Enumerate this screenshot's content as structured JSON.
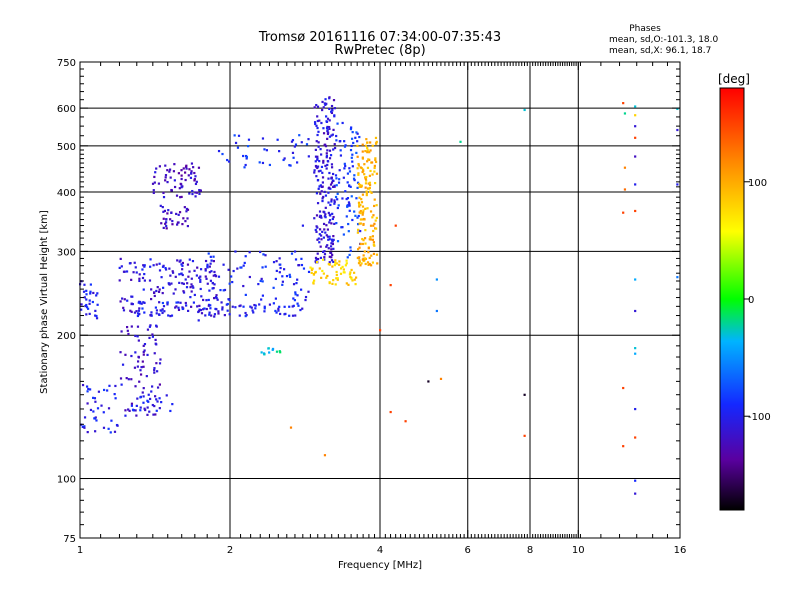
{
  "chart_data": {
    "type": "scatter",
    "title": "Tromsø 20161116 07:34:00-07:35:43",
    "subtitle": "RwPretec (8p)",
    "xlabel": "Frequency [MHz]",
    "ylabel": "Stationary phase Virtual Height [km]",
    "x_scale": "log",
    "y_scale": "log",
    "xlim": [
      1,
      16
    ],
    "ylim": [
      75,
      750
    ],
    "x_ticks": [
      1,
      2,
      4,
      6,
      8,
      10,
      16
    ],
    "x_tick_labels": [
      "1",
      "2",
      "4",
      "6",
      "8",
      "10",
      "16"
    ],
    "y_ticks": [
      75,
      100,
      200,
      300,
      400,
      500,
      600,
      750
    ],
    "y_tick_labels": [
      "75",
      "100",
      "200",
      "300",
      "400",
      "500",
      "600",
      "750"
    ],
    "grid": true,
    "legend": {
      "title": "Phases",
      "lines": [
        "mean, sd,O:-101.3, 18.0",
        "mean, sd,X:  96.1, 18.7"
      ],
      "position": "top-right"
    },
    "colorbar": {
      "label": "[deg]",
      "range": [
        -180,
        180
      ],
      "ticks": [
        100,
        0,
        -100
      ],
      "tick_labels": [
        "100",
        "0",
        "-100"
      ],
      "colormap": "rainbow"
    },
    "clusters": [
      {
        "x_range": [
          1.0,
          1.09
        ],
        "y_range": [
          215,
          260
        ],
        "phase": -101,
        "count": 30
      },
      {
        "x_range": [
          1.2,
          1.9
        ],
        "y_range": [
          220,
          290
        ],
        "phase": -110,
        "count": 180
      },
      {
        "x_range": [
          1.3,
          2.8
        ],
        "y_range": [
          219,
          235
        ],
        "phase": -98,
        "count": 90
      },
      {
        "x_range": [
          1.8,
          2.9
        ],
        "y_range": [
          235,
          300
        ],
        "phase": -95,
        "count": 80
      },
      {
        "x_range": [
          1.4,
          1.75
        ],
        "y_range": [
          390,
          460
        ],
        "phase": -120,
        "count": 70
      },
      {
        "x_range": [
          1.45,
          1.65
        ],
        "y_range": [
          335,
          375
        ],
        "phase": -120,
        "count": 35
      },
      {
        "x_range": [
          1.9,
          2.9
        ],
        "y_range": [
          450,
          530
        ],
        "phase": -90,
        "count": 40
      },
      {
        "x_range": [
          2.95,
          3.25
        ],
        "y_range": [
          280,
          640
        ],
        "phase": -110,
        "count": 220
      },
      {
        "x_range": [
          3.25,
          3.65
        ],
        "y_range": [
          290,
          560
        ],
        "phase": -85,
        "count": 90
      },
      {
        "x_range": [
          3.6,
          3.95
        ],
        "y_range": [
          280,
          520
        ],
        "phase": 96,
        "count": 160
      },
      {
        "x_range": [
          2.9,
          3.6
        ],
        "y_range": [
          255,
          290
        ],
        "phase": 80,
        "count": 60
      },
      {
        "x_range": [
          1.0,
          1.2
        ],
        "y_range": [
          125,
          160
        ],
        "phase": -100,
        "count": 40
      },
      {
        "x_range": [
          1.2,
          1.45
        ],
        "y_range": [
          135,
          210
        ],
        "phase": -115,
        "count": 80
      },
      {
        "x_range": [
          1.25,
          1.55
        ],
        "y_range": [
          138,
          150
        ],
        "phase": -100,
        "count": 25
      },
      {
        "x_range": [
          2.3,
          2.55
        ],
        "y_range": [
          182,
          188
        ],
        "phase": -30,
        "count": 12
      }
    ],
    "points": [
      {
        "x": 1.73,
        "y": 215,
        "phase": -100
      },
      {
        "x": 2.05,
        "y": 300,
        "phase": -100
      },
      {
        "x": 2.45,
        "y": 285,
        "phase": -100
      },
      {
        "x": 2.7,
        "y": 300,
        "phase": -100
      },
      {
        "x": 2.8,
        "y": 340,
        "phase": -100
      },
      {
        "x": 4.3,
        "y": 340,
        "phase": 150
      },
      {
        "x": 4.0,
        "y": 205,
        "phase": 150
      },
      {
        "x": 4.2,
        "y": 255,
        "phase": 150
      },
      {
        "x": 5.2,
        "y": 262,
        "phase": -50
      },
      {
        "x": 5.2,
        "y": 225,
        "phase": -60
      },
      {
        "x": 5.0,
        "y": 160,
        "phase": -170
      },
      {
        "x": 4.5,
        "y": 132,
        "phase": 150
      },
      {
        "x": 4.2,
        "y": 138,
        "phase": 150
      },
      {
        "x": 5.3,
        "y": 162,
        "phase": 120
      },
      {
        "x": 2.65,
        "y": 128,
        "phase": 120
      },
      {
        "x": 3.1,
        "y": 112,
        "phase": 120
      },
      {
        "x": 5.8,
        "y": 510,
        "phase": -20
      },
      {
        "x": 7.8,
        "y": 150,
        "phase": -170
      },
      {
        "x": 7.8,
        "y": 123,
        "phase": 150
      },
      {
        "x": 7.8,
        "y": 595,
        "phase": -30
      },
      {
        "x": 12.3,
        "y": 615,
        "phase": 150
      },
      {
        "x": 12.4,
        "y": 585,
        "phase": -20
      },
      {
        "x": 12.4,
        "y": 450,
        "phase": 120
      },
      {
        "x": 12.4,
        "y": 405,
        "phase": 130
      },
      {
        "x": 12.3,
        "y": 362,
        "phase": 150
      },
      {
        "x": 12.3,
        "y": 155,
        "phase": 150
      },
      {
        "x": 12.3,
        "y": 117,
        "phase": 150
      },
      {
        "x": 13.0,
        "y": 605,
        "phase": -30
      },
      {
        "x": 13.0,
        "y": 580,
        "phase": 80
      },
      {
        "x": 13.0,
        "y": 550,
        "phase": -110
      },
      {
        "x": 13.0,
        "y": 520,
        "phase": 150
      },
      {
        "x": 13.0,
        "y": 475,
        "phase": -120
      },
      {
        "x": 13.0,
        "y": 415,
        "phase": -100
      },
      {
        "x": 13.0,
        "y": 365,
        "phase": 150
      },
      {
        "x": 13.0,
        "y": 262,
        "phase": -40
      },
      {
        "x": 13.0,
        "y": 225,
        "phase": -110
      },
      {
        "x": 13.0,
        "y": 188,
        "phase": -30
      },
      {
        "x": 13.0,
        "y": 183,
        "phase": -40
      },
      {
        "x": 13.0,
        "y": 140,
        "phase": -100
      },
      {
        "x": 13.0,
        "y": 122,
        "phase": 150
      },
      {
        "x": 13.0,
        "y": 99,
        "phase": -90
      },
      {
        "x": 13.0,
        "y": 93,
        "phase": -110
      },
      {
        "x": 15.8,
        "y": 598,
        "phase": -30
      },
      {
        "x": 15.8,
        "y": 540,
        "phase": -110
      },
      {
        "x": 15.8,
        "y": 415,
        "phase": -100
      },
      {
        "x": 15.8,
        "y": 265,
        "phase": -60
      }
    ]
  }
}
